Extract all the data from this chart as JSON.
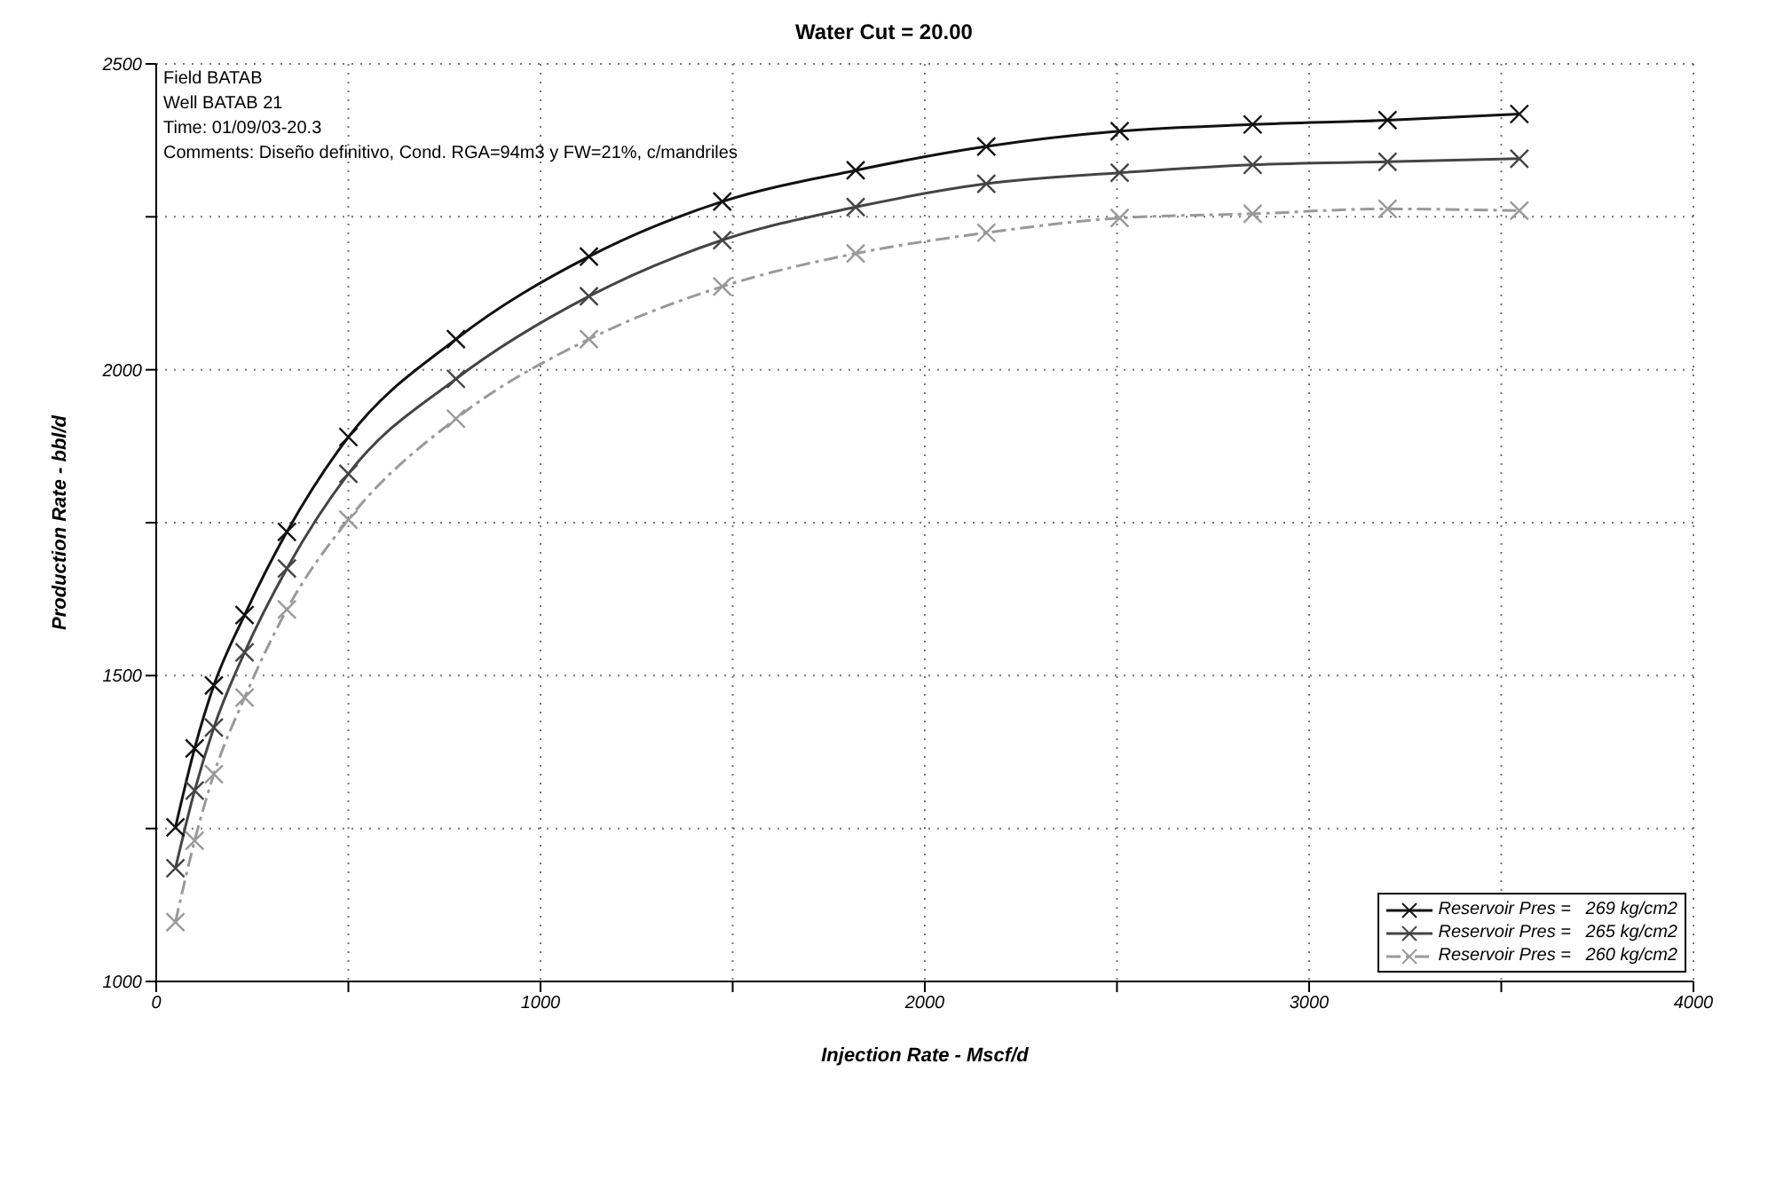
{
  "chart_data": {
    "type": "line",
    "title": "Water Cut = 20.00",
    "xlabel": "Injection Rate - Mscf/d",
    "ylabel": "Production Rate - bbl/d",
    "annotations": [
      "Field BATAB",
      "Well BATAB 21",
      "Time: 01/09/03-20.3",
      "Comments: Diseño definitivo, Cond. RGA=94m3 y FW=21%, c/mandriles"
    ],
    "x": [
      50,
      100,
      150,
      230,
      340,
      500,
      780,
      1126,
      1473,
      1820,
      2160,
      2507,
      2853,
      3204,
      3547
    ],
    "series": [
      {
        "name": "Reservoir Pres =   269 kg/cm2",
        "color": "#111111",
        "line_style": "solid",
        "values": [
          1252,
          1381,
          1484,
          1599,
          1735,
          1890,
          2050,
          2185,
          2275,
          2326,
          2365,
          2390,
          2401,
          2408,
          2418
        ]
      },
      {
        "name": "Reservoir Pres =   265 kg/cm2",
        "color": "#444444",
        "line_style": "solid",
        "values": [
          1185,
          1312,
          1415,
          1538,
          1675,
          1830,
          1985,
          2120,
          2212,
          2266,
          2304,
          2322,
          2335,
          2340,
          2345
        ]
      },
      {
        "name": "Reservoir Pres =   260 kg/cm2",
        "color": "#999999",
        "line_style": "dashed",
        "values": [
          1097,
          1230,
          1339,
          1464,
          1608,
          1755,
          1920,
          2050,
          2136,
          2190,
          2224,
          2248,
          2255,
          2263,
          2260
        ]
      }
    ],
    "xlim": [
      0,
      4000
    ],
    "xticks": [
      0,
      {
        "value": 500,
        "label": null
      },
      1000,
      {
        "value": 1500,
        "label": null
      },
      2000,
      {
        "value": 2500,
        "label": null
      },
      3000,
      {
        "value": 3500,
        "label": null
      },
      4000
    ],
    "ylim": [
      1000,
      2500
    ],
    "yticks": [
      1000,
      {
        "value": 1250,
        "label": null
      },
      1500,
      {
        "value": 1750,
        "label": null
      },
      2000,
      {
        "value": 2250,
        "label": null
      },
      2500
    ],
    "grid": true,
    "legend": "bottom right",
    "marker": "cross"
  }
}
